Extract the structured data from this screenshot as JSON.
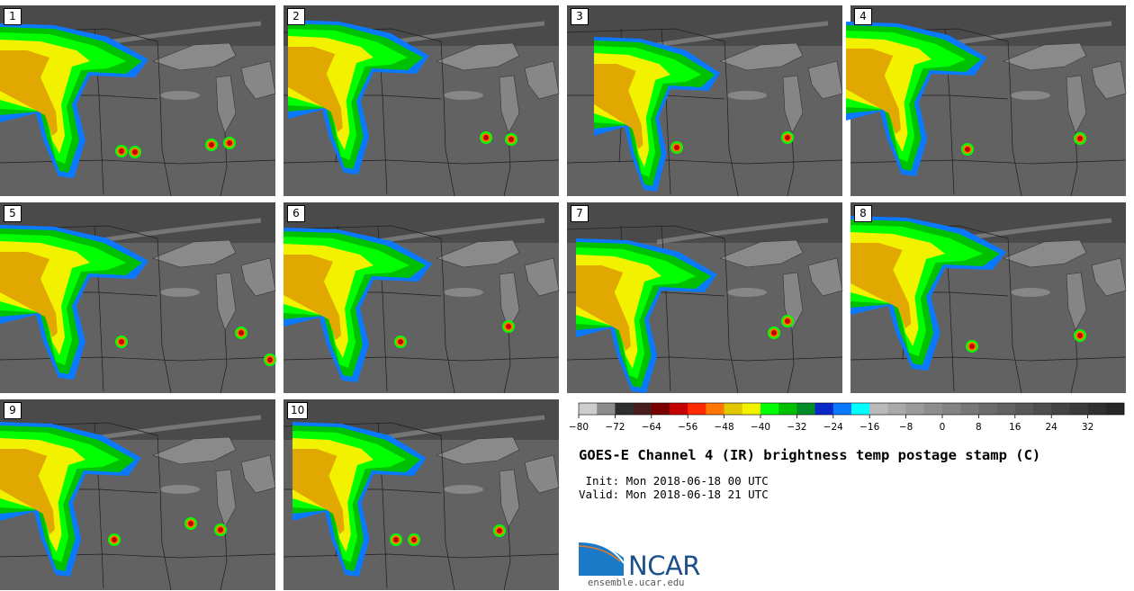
{
  "panels": [
    {
      "label": "1"
    },
    {
      "label": "2"
    },
    {
      "label": "3"
    },
    {
      "label": "4"
    },
    {
      "label": "5"
    },
    {
      "label": "6"
    },
    {
      "label": "7"
    },
    {
      "label": "8"
    },
    {
      "label": "9"
    },
    {
      "label": "10"
    }
  ],
  "colorbar": {
    "colors": [
      "#cdcdcd",
      "#8c8c8c",
      "#2e2e2e",
      "#4a1e1e",
      "#7a0000",
      "#c40000",
      "#ff2a00",
      "#ff7700",
      "#e0c800",
      "#f2f200",
      "#00ff00",
      "#00c000",
      "#008c28",
      "#0a28c8",
      "#0a78ff",
      "#00ffff",
      "#b9b9b9",
      "#a9a9a9",
      "#9a9a9a",
      "#8e8e8e",
      "#838383",
      "#777777",
      "#6c6c6c",
      "#626262",
      "#585858",
      "#4e4e4e",
      "#444444",
      "#3a3a3a",
      "#303030",
      "#262626"
    ],
    "ticks": [
      "−80",
      "−72",
      "−64",
      "−56",
      "−48",
      "−40",
      "−32",
      "−24",
      "−16",
      "−8",
      "0",
      "8",
      "16",
      "24",
      "32"
    ]
  },
  "title": "GOES-E Channel 4 (IR) brightness temp postage stamp (C)",
  "init": " Init: Mon 2018-06-18 00 UTC",
  "valid": "Valid: Mon 2018-06-18 21 UTC",
  "logo": {
    "text": "NCAR",
    "url": "ensemble.ucar.edu"
  }
}
